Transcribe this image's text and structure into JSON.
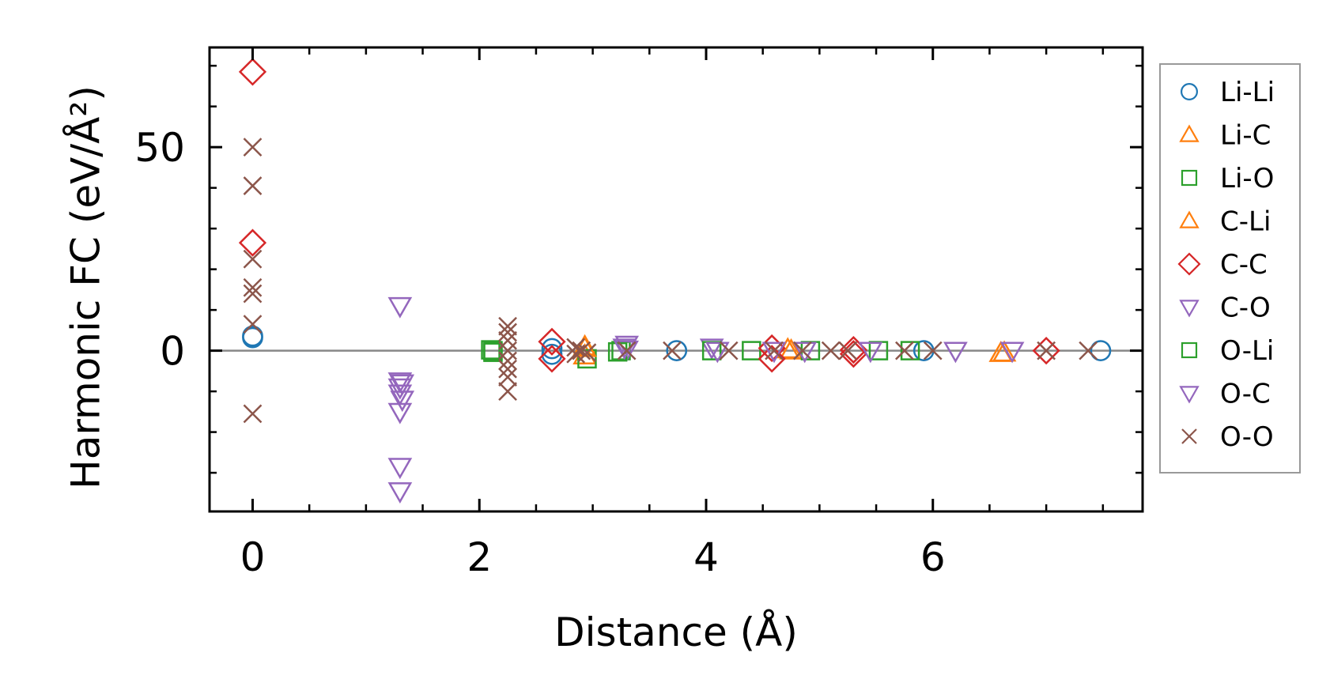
{
  "chart_data": {
    "type": "scatter",
    "xlabel": "Distance (Å)",
    "ylabel": "Harmonic FC (eV/Å²)",
    "xlim": [
      -0.38,
      7.85
    ],
    "ylim": [
      -39.5,
      74.5
    ],
    "xticks": [
      0,
      2,
      4,
      6
    ],
    "xtick_labels": [
      "0",
      "2",
      "4",
      "6"
    ],
    "yticks": [
      0,
      50
    ],
    "ytick_labels": [
      "0",
      "50"
    ],
    "zero_line": true,
    "grid": false,
    "legend_position": "right",
    "series": [
      {
        "name": "Li-Li",
        "marker": "circle",
        "color": "#1f77b4",
        "points": [
          [
            0,
            3.2
          ],
          [
            0,
            3.6
          ],
          [
            2.64,
            0.5
          ],
          [
            2.64,
            -0.9
          ],
          [
            3.74,
            0
          ],
          [
            5.92,
            0
          ],
          [
            7.48,
            0
          ]
        ]
      },
      {
        "name": "Li-C",
        "marker": "triangle-up",
        "color": "#ff7f0e",
        "points": [
          [
            2.93,
            1.0
          ],
          [
            2.93,
            -1.2
          ],
          [
            4.75,
            0
          ],
          [
            6.63,
            -0.5
          ]
        ]
      },
      {
        "name": "Li-O",
        "marker": "square",
        "color": "#2ca02c",
        "points": [
          [
            2.12,
            0
          ],
          [
            2.12,
            -0.4
          ],
          [
            2.95,
            -2.0
          ],
          [
            3.25,
            0
          ],
          [
            4.4,
            0
          ],
          [
            4.92,
            0
          ],
          [
            5.52,
            0
          ]
        ]
      },
      {
        "name": "C-Li",
        "marker": "triangle-up",
        "color": "#ff7f0e",
        "points": [
          [
            2.93,
            0.6
          ],
          [
            4.72,
            0.3
          ],
          [
            6.6,
            -0.6
          ]
        ]
      },
      {
        "name": "C-C",
        "marker": "diamond",
        "color": "#d62728",
        "points": [
          [
            0,
            68.5
          ],
          [
            0,
            26.5
          ],
          [
            2.64,
            2.2
          ],
          [
            2.64,
            -2.0
          ],
          [
            4.58,
            0.6
          ],
          [
            4.58,
            -2.0
          ],
          [
            5.3,
            0.2
          ],
          [
            5.3,
            -0.8
          ],
          [
            7.0,
            0
          ]
        ]
      },
      {
        "name": "C-O",
        "marker": "triangle-down",
        "color": "#9467bd",
        "points": [
          [
            1.3,
            11.0
          ],
          [
            1.3,
            -7.5
          ],
          [
            1.3,
            -9.0
          ],
          [
            1.3,
            -10.5
          ],
          [
            1.3,
            -15.0
          ],
          [
            1.3,
            -28.5
          ],
          [
            1.3,
            -34.5
          ],
          [
            3.3,
            1.5
          ],
          [
            3.3,
            0.3
          ],
          [
            4.05,
            0.8
          ],
          [
            4.6,
            0
          ]
        ]
      },
      {
        "name": "O-Li",
        "marker": "square",
        "color": "#2ca02c",
        "points": [
          [
            2.1,
            0.2
          ],
          [
            3.22,
            -0.3
          ],
          [
            4.05,
            0
          ],
          [
            5.8,
            0
          ]
        ]
      },
      {
        "name": "O-C",
        "marker": "triangle-down",
        "color": "#9467bd",
        "points": [
          [
            1.32,
            -8.0
          ],
          [
            1.32,
            -12.0
          ],
          [
            3.28,
            0.8
          ],
          [
            4.1,
            0
          ],
          [
            4.87,
            0
          ],
          [
            5.45,
            0
          ],
          [
            6.2,
            0
          ],
          [
            6.7,
            0
          ]
        ]
      },
      {
        "name": "O-O",
        "marker": "x",
        "color": "#8c564b",
        "points": [
          [
            0,
            50.0
          ],
          [
            0,
            40.5
          ],
          [
            0,
            22.5
          ],
          [
            0,
            15.5
          ],
          [
            0,
            14.0
          ],
          [
            0,
            6.5
          ],
          [
            0,
            -15.5
          ],
          [
            2.25,
            6.0
          ],
          [
            2.25,
            4.5
          ],
          [
            2.25,
            2.5
          ],
          [
            2.25,
            0
          ],
          [
            2.25,
            -2.5
          ],
          [
            2.25,
            -4.5
          ],
          [
            2.25,
            -6.5
          ],
          [
            2.25,
            -10.0
          ],
          [
            2.85,
            0.8
          ],
          [
            2.85,
            -0.8
          ],
          [
            2.9,
            0
          ],
          [
            2.95,
            -0.5
          ],
          [
            3.3,
            0
          ],
          [
            3.7,
            0
          ],
          [
            4.2,
            0
          ],
          [
            4.6,
            0
          ],
          [
            4.85,
            0
          ],
          [
            5.1,
            0
          ],
          [
            5.25,
            0
          ],
          [
            5.75,
            0
          ],
          [
            6.0,
            0
          ],
          [
            7.0,
            0
          ],
          [
            7.37,
            0
          ]
        ]
      }
    ]
  }
}
